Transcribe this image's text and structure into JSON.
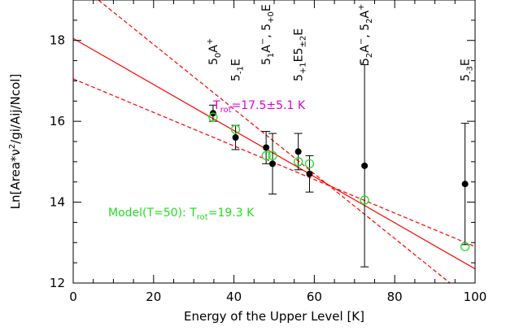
{
  "chart_data": {
    "type": "scatter",
    "xlabel": "Energy of the Upper Level [K]",
    "ylabel": "Ln[Area*ν²/gi/Aij/Ncol]",
    "xlim": [
      0,
      100
    ],
    "ylim": [
      12,
      19
    ],
    "x_ticks": [
      "0",
      "20",
      "40",
      "60",
      "80",
      "100"
    ],
    "y_ticks": [
      "12",
      "14",
      "16",
      "18"
    ],
    "grid": false,
    "annotations": {
      "fit": "T_rot=17.5±5.1 K",
      "model": "Model(T=50): T_rot=19.3 K"
    },
    "transition_labels": [
      {
        "x": 34.8,
        "main": "5",
        "sub": "0",
        "sup": "",
        "tail": "A",
        "tailsup": "+"
      },
      {
        "x": 40.4,
        "main": "5",
        "sub": "-1",
        "sup": "",
        "tail": "E",
        "tailsup": ""
      },
      {
        "x": 48.0,
        "main": "5",
        "sub": "1",
        "sup": "",
        "tail": "A",
        "tailsup": "−",
        "extra": ", 5",
        "extrasub": "+0",
        "extratail": "E"
      },
      {
        "x": 56.0,
        "main": "5",
        "sub": "+1",
        "sup": "",
        "tail": "E",
        "tailsup": "",
        "extra": "5",
        "extrasub": "±2",
        "extratail": "E"
      },
      {
        "x": 72.5,
        "main": "5",
        "sub": "2",
        "sup": "",
        "tail": "A",
        "tailsup": "−",
        "extra": ", 5",
        "extrasub": "2",
        "extratail": "A",
        "extratailsup": "+"
      },
      {
        "x": 97.5,
        "main": "5",
        "sub": "-3",
        "sup": "",
        "tail": "E",
        "tailsup": ""
      }
    ],
    "series": [
      {
        "name": "observed",
        "x": [
          34.8,
          40.4,
          48.0,
          49.6,
          56.0,
          58.8,
          72.5,
          97.5
        ],
        "y": [
          16.2,
          15.6,
          15.35,
          14.95,
          15.25,
          14.7,
          14.9,
          14.45
        ],
        "err": [
          0.2,
          0.3,
          0.4,
          0.75,
          0.45,
          0.45,
          2.5,
          1.5
        ]
      },
      {
        "name": "model",
        "x": [
          34.8,
          40.4,
          48.0,
          49.6,
          56.0,
          58.8,
          72.5,
          97.5
        ],
        "y": [
          16.1,
          15.8,
          15.15,
          15.15,
          15.0,
          14.95,
          14.05,
          12.9
        ]
      }
    ],
    "fit_lines": {
      "best": {
        "x": [
          0,
          100
        ],
        "y": [
          18.05,
          12.35
        ]
      },
      "upper": {
        "x": [
          0,
          100
        ],
        "y": [
          19.5,
          11.5
        ]
      },
      "lower": {
        "x": [
          0,
          100
        ],
        "y": [
          17.05,
          12.9
        ]
      }
    },
    "colors": {
      "observed": "#000000",
      "model": "#22dd22",
      "fit": "#ff0000",
      "fit_text": "#dd00dd",
      "model_text": "#22dd22"
    }
  }
}
